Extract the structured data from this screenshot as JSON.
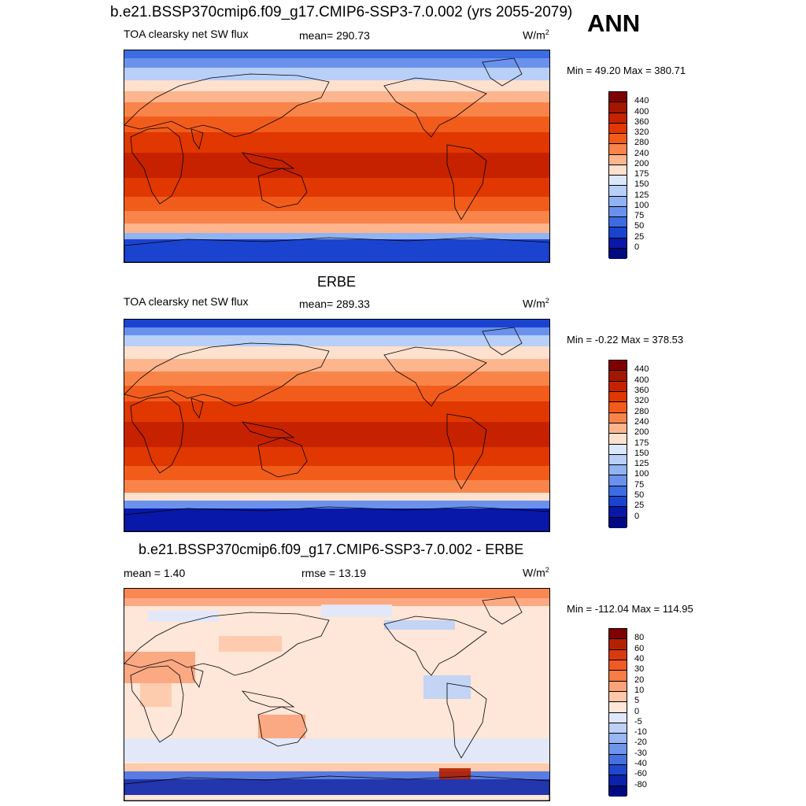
{
  "header": {
    "main_title": "b.e21.BSSP370cmip6.f09_g17.CMIP6-SSP3-7.0.002 (yrs 2055-2079)",
    "season": "ANN"
  },
  "panels": [
    {
      "id": "model",
      "variable": "TOA clearsky net SW flux",
      "stat1": "mean= 290.73",
      "units": "W/m",
      "units_sup": "2",
      "minmax": "Min =  49.20 Max = 380.71",
      "colorbar": {
        "levels": [
          "440",
          "400",
          "360",
          "320",
          "280",
          "240",
          "200",
          "175",
          "150",
          "125",
          "100",
          "75",
          "50",
          "25",
          "0"
        ],
        "colors": [
          "#7f0000",
          "#a31600",
          "#c62200",
          "#e03800",
          "#f25c1a",
          "#f8844a",
          "#fdb58d",
          "#fde0cd",
          "#dbe7fb",
          "#b8cff7",
          "#91b3f2",
          "#6a92ec",
          "#3d6be2",
          "#1a44d0",
          "#0818a8",
          "#000a80"
        ]
      }
    },
    {
      "id": "obs",
      "title": "ERBE",
      "variable": "TOA clearsky net SW flux",
      "stat1": "mean= 289.33",
      "units": "W/m",
      "units_sup": "2",
      "minmax": "Min =  -0.22 Max = 378.53",
      "colorbar": {
        "levels": [
          "440",
          "400",
          "360",
          "320",
          "280",
          "240",
          "200",
          "175",
          "150",
          "125",
          "100",
          "75",
          "50",
          "25",
          "0"
        ],
        "colors": [
          "#7f0000",
          "#a31600",
          "#c62200",
          "#e03800",
          "#f25c1a",
          "#f8844a",
          "#fdb58d",
          "#fde0cd",
          "#dbe7fb",
          "#b8cff7",
          "#91b3f2",
          "#6a92ec",
          "#3d6be2",
          "#1a44d0",
          "#0818a8",
          "#000a80"
        ]
      }
    },
    {
      "id": "diff",
      "title": "b.e21.BSSP370cmip6.f09_g17.CMIP6-SSP3-7.0.002 - ERBE",
      "stat1": "mean =   1.40",
      "stat2": "rmse =  13.19",
      "units": "W/m",
      "units_sup": "2",
      "minmax": "Min = -112.04 Max = 114.95",
      "colorbar": {
        "levels": [
          "80",
          "60",
          "40",
          "30",
          "20",
          "10",
          "5",
          "0",
          "-5",
          "-10",
          "-20",
          "-30",
          "-40",
          "-60",
          "-80"
        ],
        "colors": [
          "#7f0000",
          "#b41f00",
          "#d83a10",
          "#ef5a25",
          "#f77c45",
          "#fba27a",
          "#fdc8a8",
          "#fee6d8",
          "#dfe8fb",
          "#bdd1f7",
          "#98b6f1",
          "#6e95ea",
          "#4670e0",
          "#1f48ce",
          "#0a22aa",
          "#000a80"
        ]
      }
    }
  ],
  "chart_data": {
    "type": "heatmap",
    "title": "b.e21.BSSP370cmip6.f09_g17.CMIP6-SSP3-7.0.002 (yrs 2055-2079)",
    "season": "ANN",
    "variable": "TOA clearsky net SW flux",
    "units": "W/m2",
    "maps": [
      {
        "name": "b.e21.BSSP370cmip6.f09_g17.CMIP6-SSP3-7.0.002",
        "mean": 290.73,
        "min": 49.2,
        "max": 380.71
      },
      {
        "name": "ERBE",
        "mean": 289.33,
        "min": -0.22,
        "max": 378.53
      },
      {
        "name": "b.e21.BSSP370cmip6.f09_g17.CMIP6-SSP3-7.0.002 - ERBE",
        "mean": 1.4,
        "rmse": 13.19,
        "min": -112.04,
        "max": 114.95
      }
    ],
    "contour_levels_abs": [
      0,
      25,
      50,
      75,
      100,
      125,
      150,
      175,
      200,
      240,
      280,
      320,
      360,
      400,
      440
    ],
    "contour_levels_diff": [
      -80,
      -60,
      -40,
      -30,
      -20,
      -10,
      -5,
      0,
      5,
      10,
      20,
      30,
      40,
      60,
      80
    ]
  }
}
